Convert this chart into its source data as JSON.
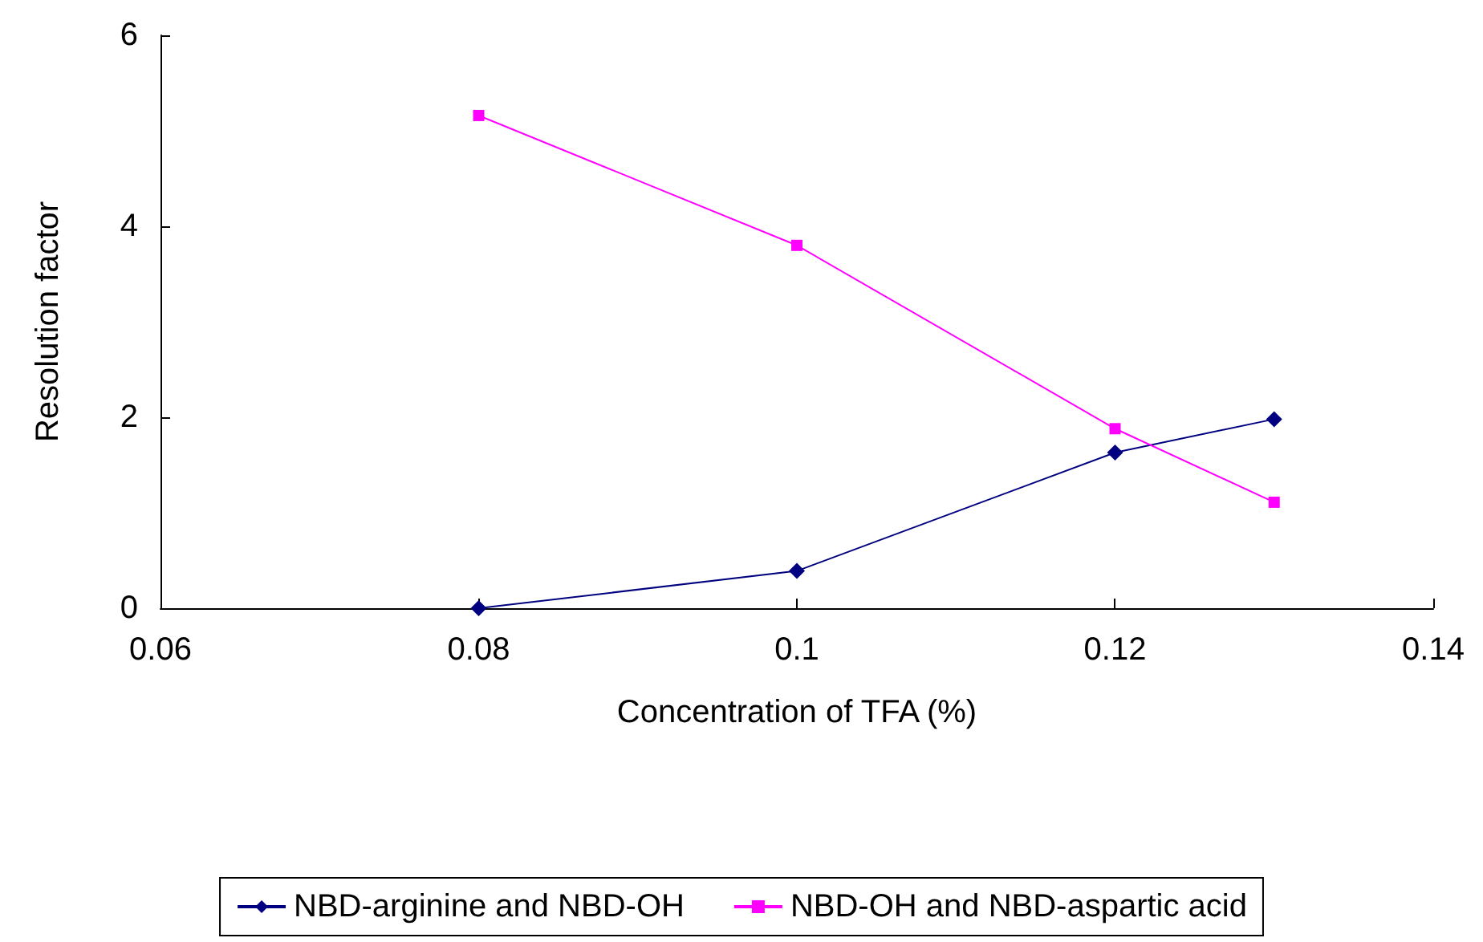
{
  "chart_data": {
    "type": "line",
    "xlabel": "Concentration of TFA (%)",
    "ylabel": "Resolution factor",
    "x": [
      0.08,
      0.1,
      0.12,
      0.13
    ],
    "series": [
      {
        "name": "NBD-arginine and NBD-OH",
        "color": "#000080",
        "marker": "diamond",
        "values": [
          0,
          0.39,
          1.63,
          1.98
        ]
      },
      {
        "name": "NBD-OH and NBD-aspartic acid",
        "color": "#ff00ff",
        "marker": "square",
        "values": [
          5.16,
          3.8,
          1.88,
          1.11
        ]
      }
    ],
    "xlim": [
      0.06,
      0.14
    ],
    "xticks": [
      0.06,
      0.08,
      0.1,
      0.12,
      0.14
    ],
    "ylim": [
      0,
      6
    ],
    "yticks": [
      0,
      2,
      4,
      6
    ],
    "grid": false,
    "legend": "bottom",
    "line_style": "solid"
  }
}
